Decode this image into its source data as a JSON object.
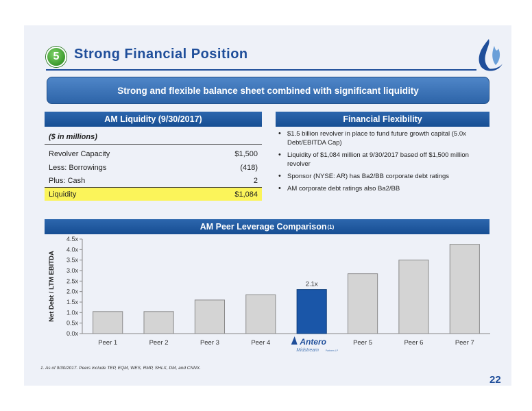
{
  "header": {
    "step_number": "5",
    "title": "Strong Financial Position"
  },
  "banner": {
    "text": "Strong and flexible balance sheet combined with significant liquidity"
  },
  "liquidity": {
    "heading": "AM Liquidity (9/30/2017)",
    "units": "($ in millions)",
    "rows": [
      {
        "label": "Revolver Capacity",
        "value": "$1,500"
      },
      {
        "label": "Less: Borrowings",
        "value": "(418)"
      },
      {
        "label": "Plus: Cash",
        "value": "2"
      },
      {
        "label": "Liquidity",
        "value": "$1,084"
      }
    ],
    "highlight_color": "#fbf45a"
  },
  "flexibility": {
    "heading": "Financial Flexibility",
    "bullets": [
      "$1.5 billion revolver in place to fund future growth capital (5.0x Debt/EBITDA Cap)",
      "Liquidity of $1,084 million at 9/30/2017 based off $1,500 million revolver",
      "Sponsor (NYSE: AR) has Ba2/BB corporate debt ratings",
      "AM corporate debt ratings also Ba2/BB"
    ]
  },
  "peer_chart": {
    "heading": "AM Peer Leverage Comparison",
    "heading_sup": "(1)"
  },
  "chart_data": {
    "type": "bar",
    "categories": [
      "Peer 1",
      "Peer 2",
      "Peer 3",
      "Peer 4",
      "Antero Midstream",
      "Peer 5",
      "Peer 6",
      "Peer 7"
    ],
    "values": [
      1.05,
      1.05,
      1.6,
      1.85,
      2.1,
      2.85,
      3.5,
      4.25
    ],
    "highlight_index": 4,
    "highlight_label": "2.1x",
    "ylabel": "Net Debt / LTM EBITDA",
    "ylim": [
      0,
      4.5
    ],
    "yticks": [
      "0.0x",
      "0.5x",
      "1.0x",
      "1.5x",
      "2.0x",
      "2.5x",
      "3.0x",
      "3.5x",
      "4.0x",
      "4.5x"
    ],
    "grid": false,
    "bar_color": "#d4d4d4",
    "highlight_color": "#1a56a8"
  },
  "logo": {
    "name": "Antero",
    "sub": "Midstream",
    "suffix": "Partners LP"
  },
  "footnote": "1.  As of 9/30/2017.  Peers include TEP, EQM, WES, RMP, SHLX, DM, and CNNX.",
  "page_number": "22"
}
